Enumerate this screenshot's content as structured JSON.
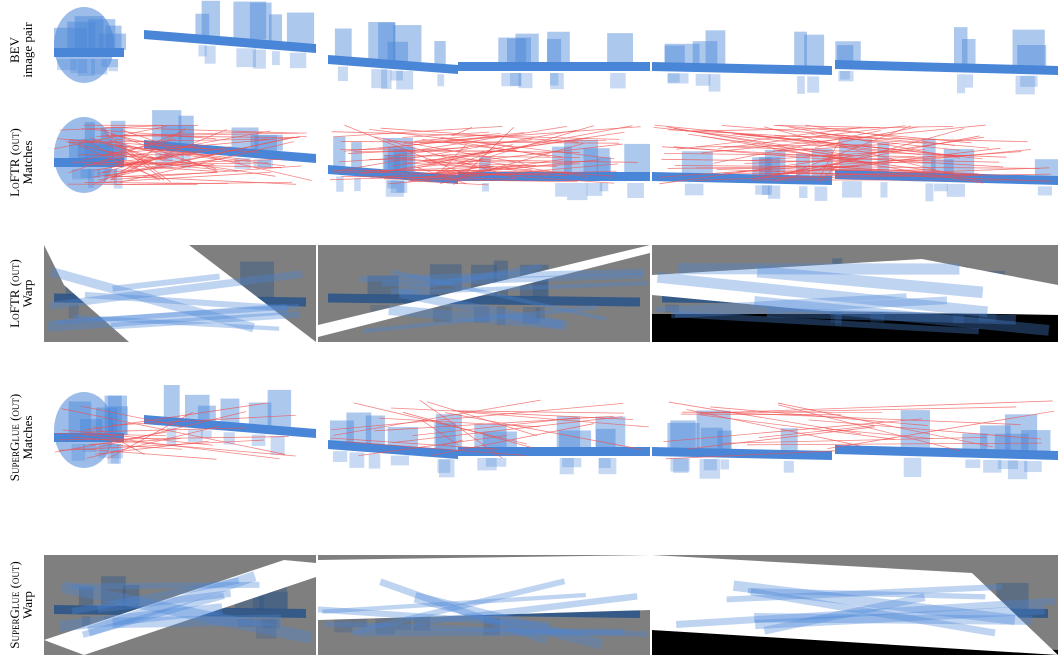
{
  "rows": [
    {
      "label": [
        "BEV",
        "image pair"
      ]
    },
    {
      "label": [
        "LoFTR (out)",
        "Matches"
      ]
    },
    {
      "label": [
        "LoFTR (out)",
        "Warp"
      ]
    },
    {
      "label": [
        "SuperGlue (out)",
        "Matches"
      ]
    },
    {
      "label": [
        "SuperGlue (out)",
        "Warp"
      ]
    }
  ]
}
